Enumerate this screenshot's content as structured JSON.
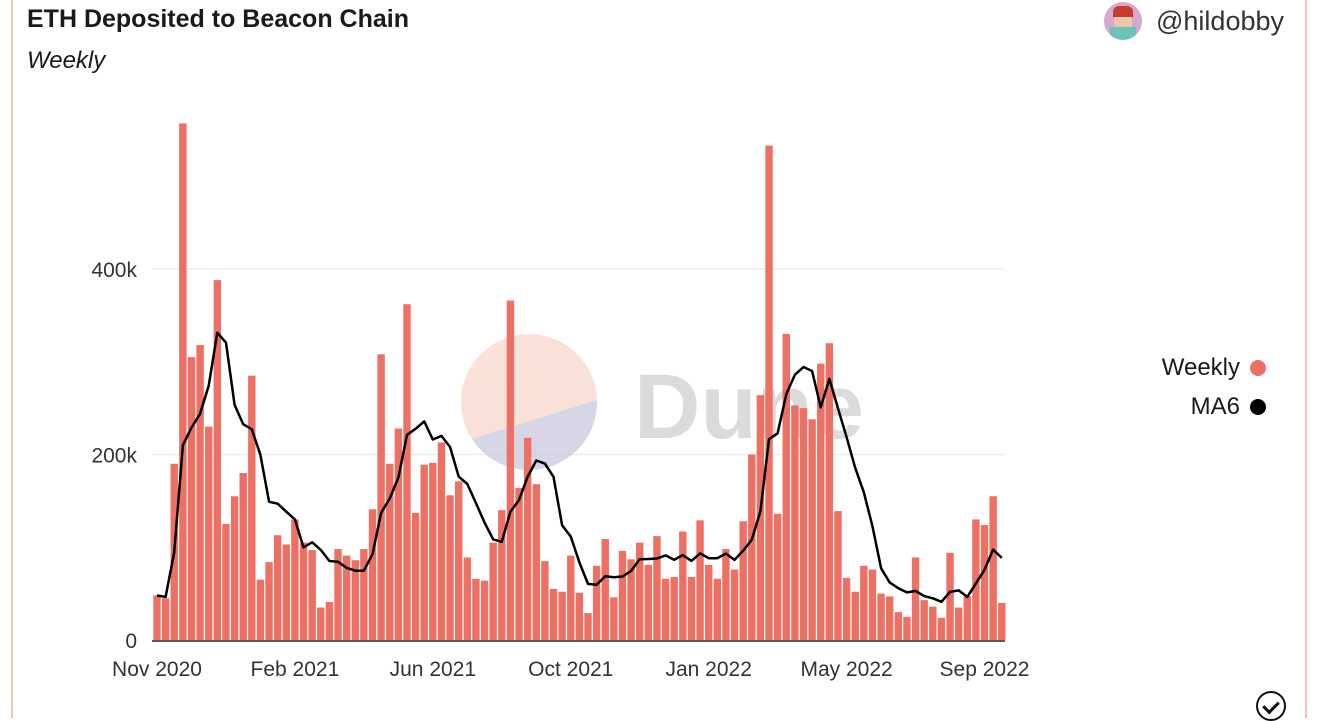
{
  "header": {
    "title": "ETH Deposited to Beacon Chain",
    "subtitle": "Weekly",
    "author": "@hildobby"
  },
  "watermark": "Dune",
  "colors": {
    "weekly": "#ec7063",
    "ma6": "#000000",
    "grid": "#eeeeee"
  },
  "chart_data": {
    "type": "bar",
    "title": "ETH Deposited to Beacon Chain",
    "subtitle": "Weekly",
    "xlabel": "",
    "ylabel": "",
    "ylim": [
      0,
      560000
    ],
    "yticks": [
      0,
      200000,
      400000
    ],
    "ytick_labels": [
      "0",
      "200k",
      "400k"
    ],
    "xtick_labels": [
      "Nov 2020",
      "Feb 2021",
      "Jun 2021",
      "Oct 2021",
      "Jan 2022",
      "May 2022",
      "Sep 2022"
    ],
    "xtick_every_weeks": 16,
    "grid": true,
    "legend": {
      "placement": "right",
      "entries": [
        "Weekly",
        "MA6"
      ]
    },
    "series": [
      {
        "name": "Weekly",
        "type": "bar",
        "unit": "k ETH",
        "values": [
          48,
          45,
          190,
          557,
          305,
          318,
          230,
          388,
          125,
          155,
          180,
          285,
          65,
          84,
          113,
          103,
          130,
          105,
          97,
          35,
          41,
          98,
          91,
          86,
          98,
          141,
          308,
          190,
          228,
          362,
          137,
          189,
          191,
          213,
          156,
          171,
          89,
          66,
          64,
          105,
          140,
          366,
          164,
          218,
          168,
          85,
          55,
          52,
          91,
          51,
          29,
          80,
          109,
          46,
          96,
          87,
          105,
          81,
          112,
          66,
          68,
          117,
          68,
          129,
          81,
          66,
          98,
          76,
          128,
          200,
          264,
          533,
          136,
          330,
          253,
          250,
          238,
          298,
          320,
          139,
          67,
          52,
          80,
          76,
          50,
          47,
          30,
          25,
          89,
          43,
          36,
          24,
          94,
          35,
          47,
          130,
          124,
          155,
          40
        ]
      },
      {
        "name": "MA6",
        "type": "line",
        "window": 6,
        "derived_from": "Weekly"
      }
    ]
  }
}
